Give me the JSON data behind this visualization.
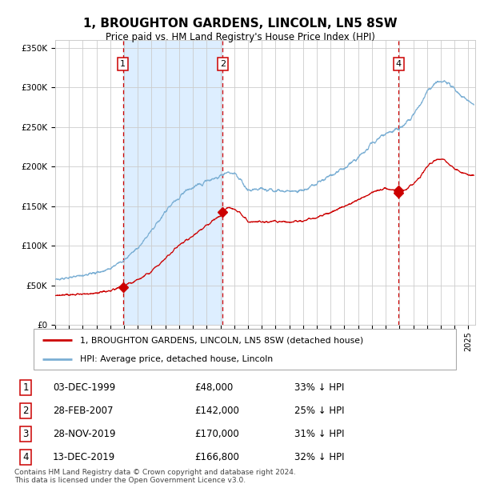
{
  "title": "1, BROUGHTON GARDENS, LINCOLN, LN5 8SW",
  "subtitle": "Price paid vs. HM Land Registry's House Price Index (HPI)",
  "transactions": [
    {
      "num": 1,
      "date_str": "03-DEC-1999",
      "year": 1999.92,
      "price": 48000,
      "pct": "33%"
    },
    {
      "num": 2,
      "date_str": "28-FEB-2007",
      "year": 2007.16,
      "price": 142000,
      "pct": "25%"
    },
    {
      "num": 3,
      "date_str": "28-NOV-2019",
      "year": 2019.91,
      "price": 170000,
      "pct": "31%"
    },
    {
      "num": 4,
      "date_str": "13-DEC-2019",
      "year": 2019.95,
      "price": 166800,
      "pct": "32%"
    }
  ],
  "red_line_color": "#cc0000",
  "blue_line_color": "#7bafd4",
  "shade_color": "#ddeeff",
  "vline_color": "#cc0000",
  "box_edge_color": "#cc0000",
  "ylim": [
    0,
    360000
  ],
  "xlim_start": 1995.0,
  "xlim_end": 2025.5,
  "yticks": [
    0,
    50000,
    100000,
    150000,
    200000,
    250000,
    300000,
    350000
  ],
  "ytick_labels": [
    "£0",
    "£50K",
    "£100K",
    "£150K",
    "£200K",
    "£250K",
    "£300K",
    "£350K"
  ],
  "xticks": [
    1995,
    1996,
    1997,
    1998,
    1999,
    2000,
    2001,
    2002,
    2003,
    2004,
    2005,
    2006,
    2007,
    2008,
    2009,
    2010,
    2011,
    2012,
    2013,
    2014,
    2015,
    2016,
    2017,
    2018,
    2019,
    2020,
    2021,
    2022,
    2023,
    2024,
    2025
  ],
  "footer": "Contains HM Land Registry data © Crown copyright and database right 2024.\nThis data is licensed under the Open Government Licence v3.0.",
  "legend_red": "1, BROUGHTON GARDENS, LINCOLN, LN5 8SW (detached house)",
  "legend_blue": "HPI: Average price, detached house, Lincoln",
  "bg_color": "#ffffff",
  "grid_color": "#cccccc"
}
